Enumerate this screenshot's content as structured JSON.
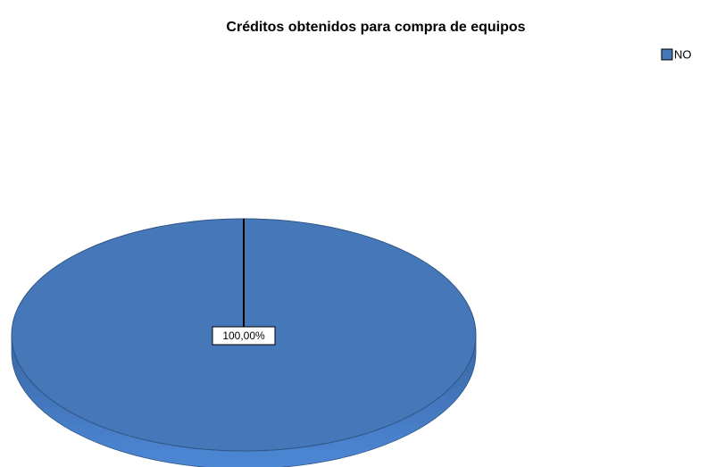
{
  "chart_data": {
    "type": "pie",
    "title": "Créditos obtenidos para compra de equipos",
    "categories": [
      "NO"
    ],
    "values": [
      100
    ],
    "value_labels": [
      "100,00%"
    ],
    "colors": [
      "#4678b9"
    ],
    "legend": "top-right"
  }
}
